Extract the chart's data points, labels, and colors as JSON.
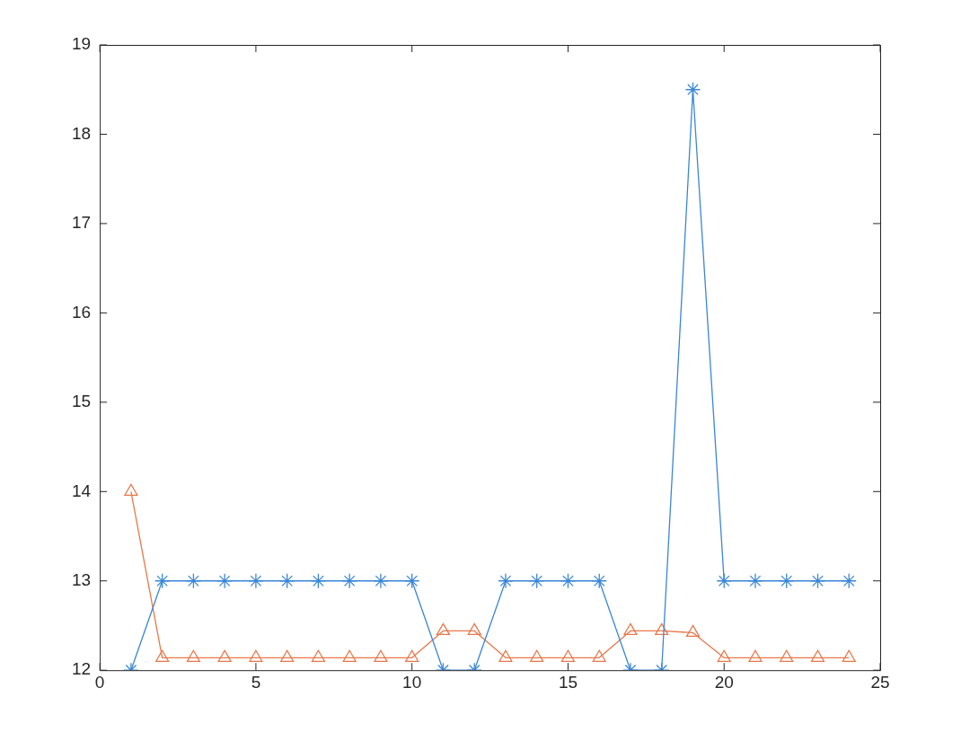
{
  "chart_data": {
    "type": "line",
    "x": [
      1,
      2,
      3,
      4,
      5,
      6,
      7,
      8,
      9,
      10,
      11,
      12,
      13,
      14,
      15,
      16,
      17,
      18,
      19,
      20,
      21,
      22,
      23,
      24
    ],
    "series": [
      {
        "color": "#3a86d6",
        "marker": "cross",
        "values": [
          12,
          13,
          13,
          13,
          13,
          13,
          13,
          13,
          13,
          13,
          12,
          12,
          13,
          13,
          13,
          13,
          12,
          12,
          18.5,
          13,
          13,
          13,
          13,
          13
        ]
      },
      {
        "color": "#e8774a",
        "marker": "triangle",
        "values": [
          14,
          12.14,
          12.14,
          12.14,
          12.14,
          12.14,
          12.14,
          12.14,
          12.14,
          12.14,
          12.44,
          12.44,
          12.14,
          12.14,
          12.14,
          12.14,
          12.44,
          12.44,
          12.42,
          12.14,
          12.14,
          12.14,
          12.14,
          12.14
        ]
      }
    ],
    "xlim": [
      0,
      25
    ],
    "xticks": [
      0,
      5,
      10,
      15,
      20,
      25
    ],
    "ylim": [
      12,
      19
    ],
    "yticks": [
      12,
      13,
      14,
      15,
      16,
      17,
      18,
      19
    ],
    "grid": false,
    "legend": false,
    "line_style": "solid"
  }
}
